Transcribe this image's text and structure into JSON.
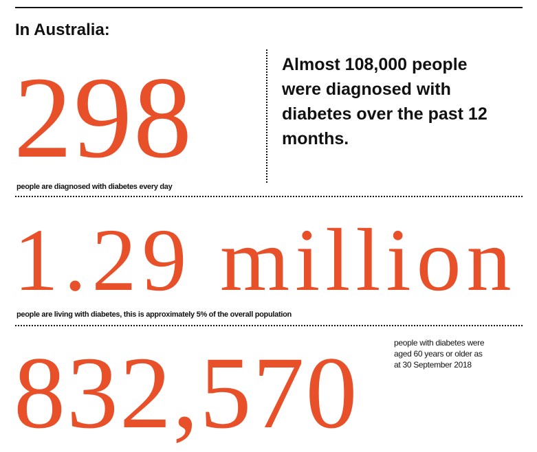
{
  "heading": "In Australia:",
  "accent_color": "#e8502a",
  "stats": [
    {
      "value": "298",
      "caption": "people are diagnosed with diabetes every day"
    },
    {
      "value": "1.29 million",
      "caption": "people are living with diabetes, this is approximately 5% of the overall population"
    },
    {
      "value": "832,570",
      "caption": "people with diabetes were aged 60 years or older as at 30 September 2018"
    }
  ],
  "side_note": "Almost 108,000 people were diagnosed with diabetes over the past 12 months."
}
